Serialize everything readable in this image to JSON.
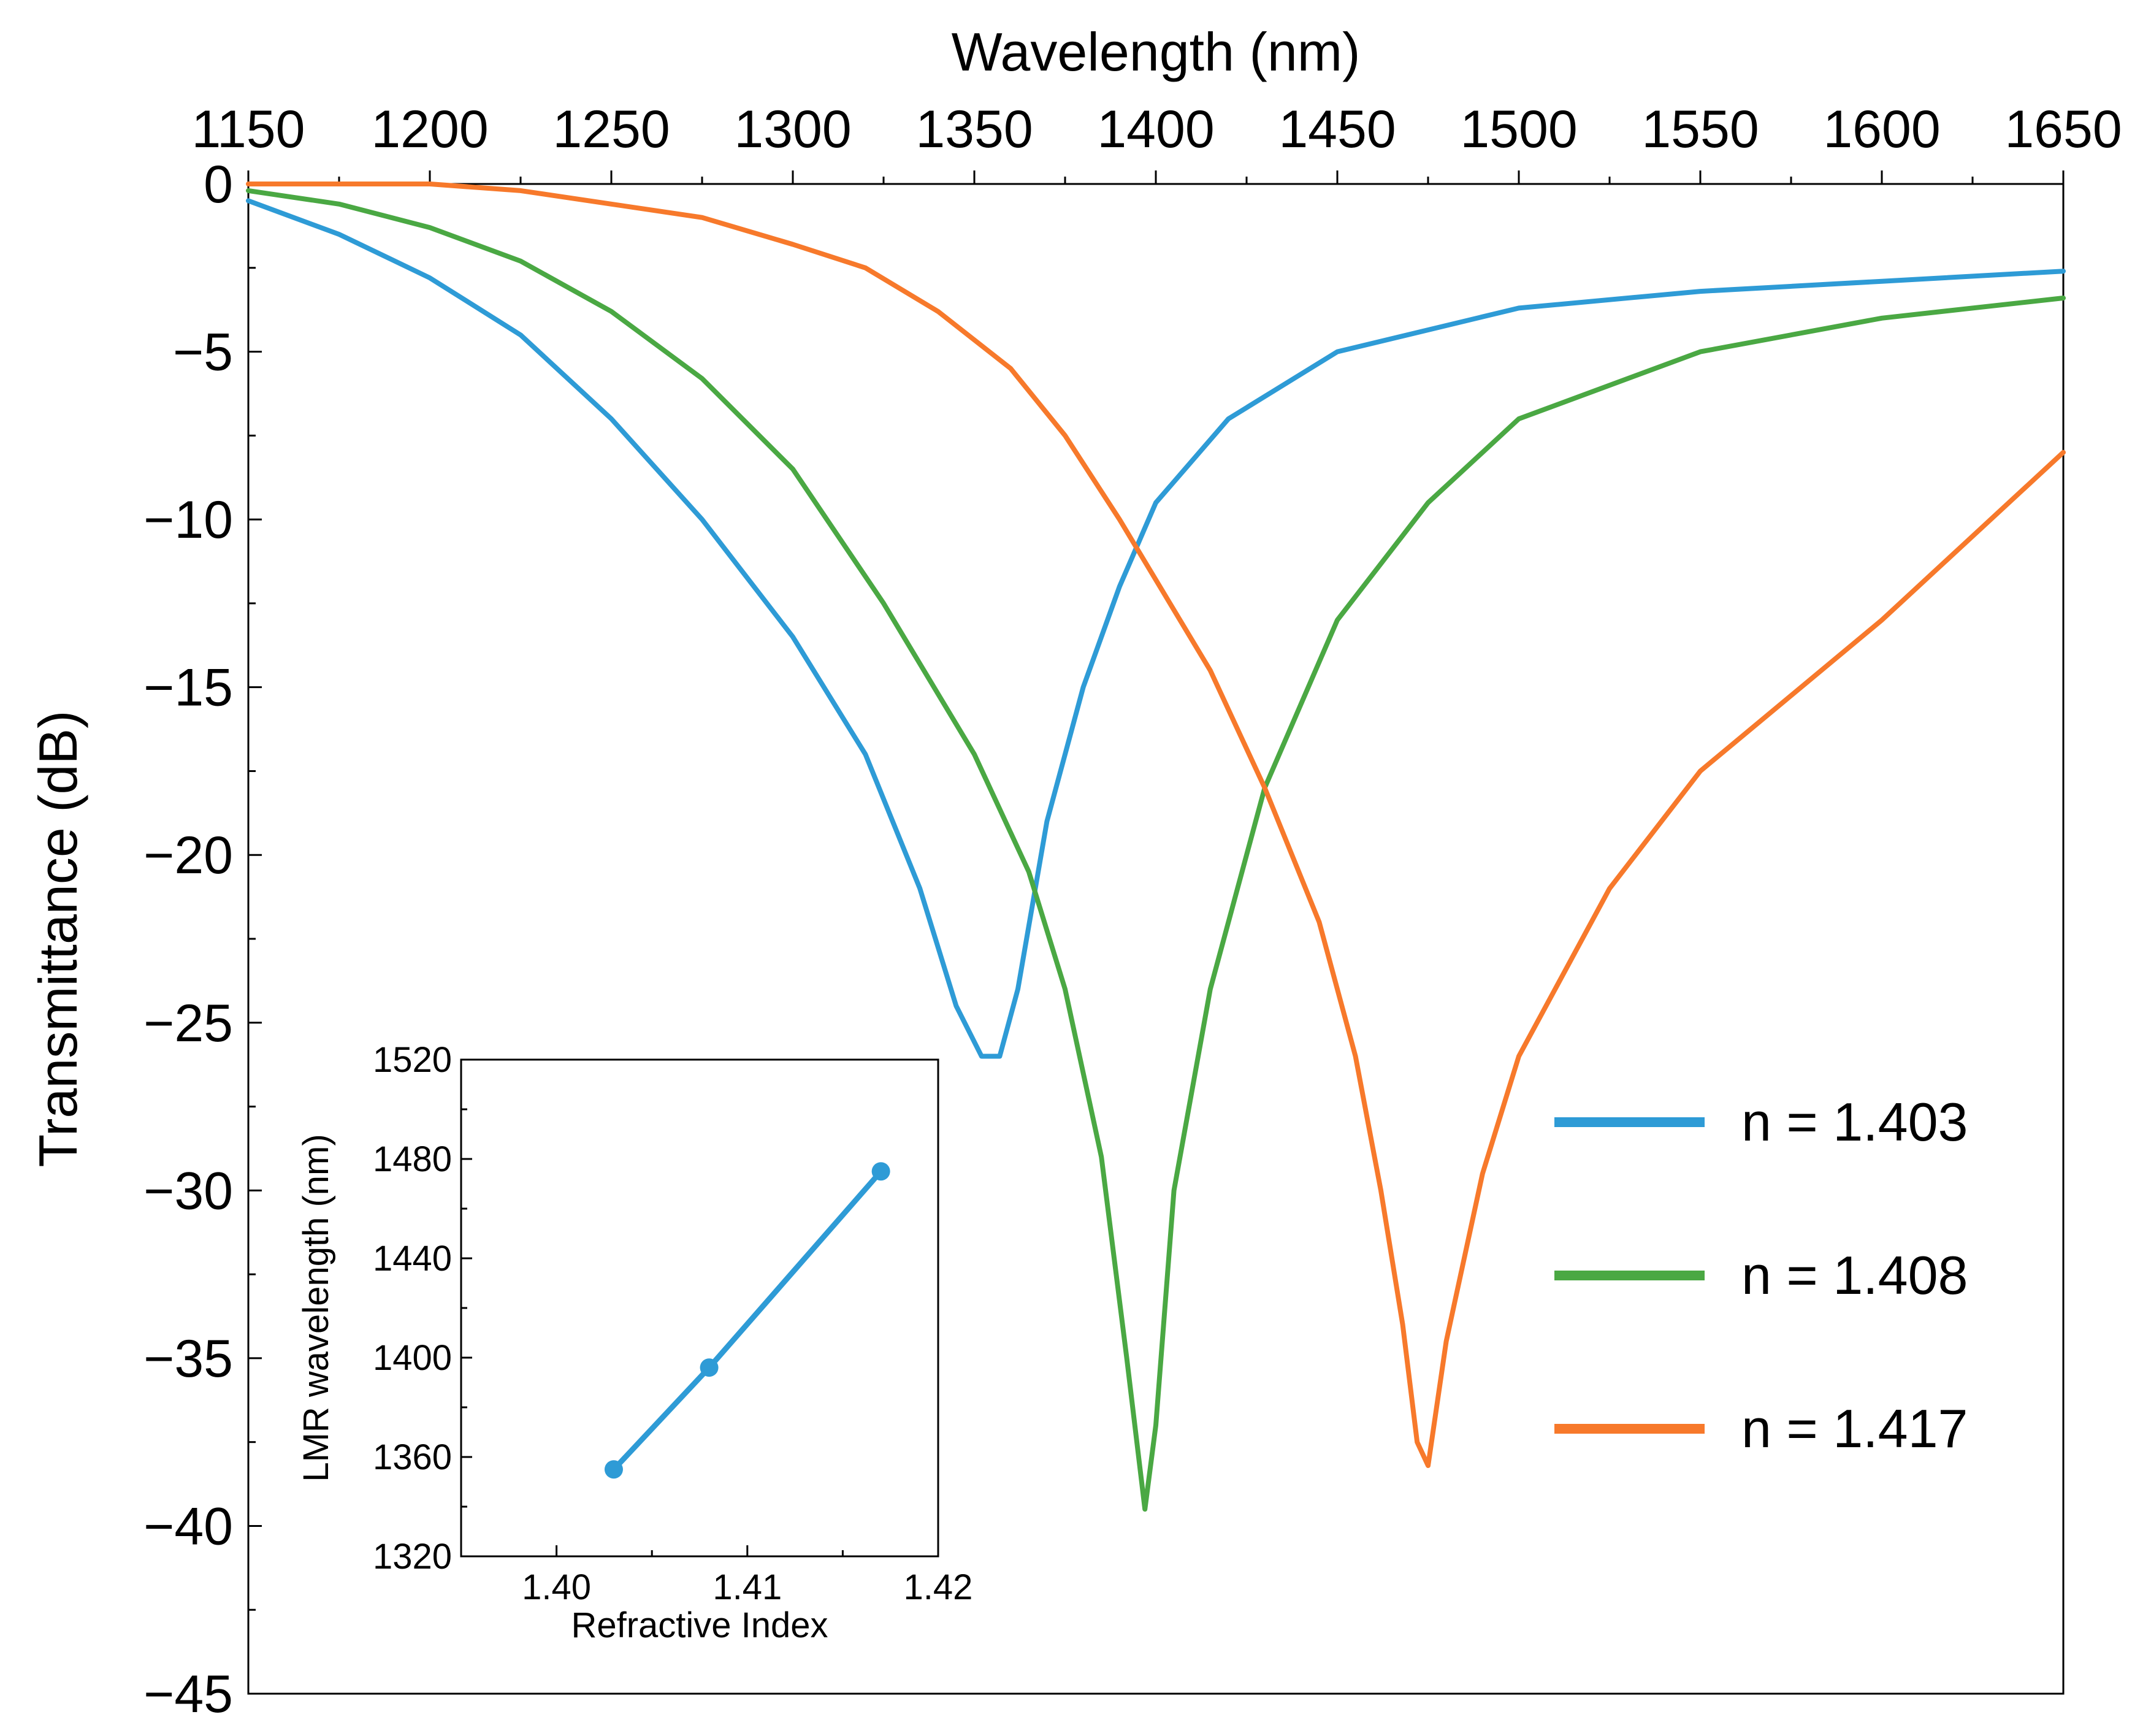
{
  "chart_data": [
    {
      "type": "line",
      "title": "",
      "xlabel": "Wavelength (nm)",
      "ylabel": "Transmittance (dB)",
      "x_axis_position": "top",
      "xlim": [
        1150,
        1650
      ],
      "ylim": [
        -45,
        0
      ],
      "xticks": [
        1150,
        1200,
        1250,
        1300,
        1350,
        1400,
        1450,
        1500,
        1550,
        1600,
        1650
      ],
      "yticks": [
        0,
        -5,
        -10,
        -15,
        -20,
        -25,
        -30,
        -35,
        -40,
        -45
      ],
      "ytick_labels": [
        "0",
        "−5",
        "−10",
        "−15",
        "−20",
        "−25",
        "−30",
        "−35",
        "−40",
        "−45"
      ],
      "grid": false,
      "legend_position": "lower-right",
      "series": [
        {
          "name": "n = 1.403",
          "color": "#2E9BD6",
          "x": [
            1150,
            1175,
            1200,
            1225,
            1250,
            1275,
            1300,
            1320,
            1335,
            1345,
            1352,
            1357,
            1362,
            1370,
            1380,
            1390,
            1400,
            1420,
            1450,
            1500,
            1550,
            1600,
            1650
          ],
          "y": [
            -0.5,
            -1.5,
            -2.8,
            -4.5,
            -7.0,
            -10.0,
            -13.5,
            -17.0,
            -21.0,
            -24.5,
            -26.0,
            -26.0,
            -24.0,
            -19.0,
            -15.0,
            -12.0,
            -9.5,
            -7.0,
            -5.0,
            -3.7,
            -3.2,
            -2.9,
            -2.6
          ]
        },
        {
          "name": "n = 1.408",
          "color": "#4AA843",
          "x": [
            1150,
            1175,
            1200,
            1225,
            1250,
            1275,
            1300,
            1325,
            1350,
            1365,
            1375,
            1385,
            1392,
            1397,
            1400,
            1405,
            1415,
            1430,
            1450,
            1475,
            1500,
            1550,
            1600,
            1650
          ],
          "y": [
            -0.2,
            -0.6,
            -1.3,
            -2.3,
            -3.8,
            -5.8,
            -8.5,
            -12.5,
            -17.0,
            -20.5,
            -24.0,
            -29.0,
            -35.0,
            -39.5,
            -37.0,
            -30.0,
            -24.0,
            -18.0,
            -13.0,
            -9.5,
            -7.0,
            -5.0,
            -4.0,
            -3.4
          ]
        },
        {
          "name": "n = 1.417",
          "color": "#F7792B",
          "x": [
            1150,
            1175,
            1200,
            1225,
            1250,
            1275,
            1300,
            1320,
            1340,
            1360,
            1375,
            1390,
            1400,
            1415,
            1430,
            1445,
            1455,
            1462,
            1468,
            1472,
            1475,
            1480,
            1490,
            1500,
            1525,
            1550,
            1600,
            1650
          ],
          "y": [
            0.0,
            0.0,
            0.0,
            -0.2,
            -0.6,
            -1.0,
            -1.8,
            -2.5,
            -3.8,
            -5.5,
            -7.5,
            -10.0,
            -11.8,
            -14.5,
            -18.0,
            -22.0,
            -26.0,
            -30.0,
            -34.0,
            -37.5,
            -38.2,
            -34.5,
            -29.5,
            -26.0,
            -21.0,
            -17.5,
            -13.0,
            -8.0
          ]
        }
      ]
    },
    {
      "type": "line",
      "title": "",
      "xlabel": "Refractive Index",
      "ylabel": "LMR wavelength (nm)",
      "xlim": [
        1.395,
        1.42
      ],
      "ylim": [
        1320,
        1520
      ],
      "xticks": [
        1.4,
        1.41,
        1.42
      ],
      "xtick_labels": [
        "1.40",
        "1.41",
        "1.42"
      ],
      "yticks": [
        1320,
        1360,
        1400,
        1440,
        1480,
        1520
      ],
      "grid": false,
      "series": [
        {
          "name": "LMR wavelength",
          "color": "#2E9BD6",
          "markers": true,
          "x": [
            1.403,
            1.408,
            1.417
          ],
          "y": [
            1355,
            1396,
            1475
          ]
        }
      ]
    }
  ]
}
